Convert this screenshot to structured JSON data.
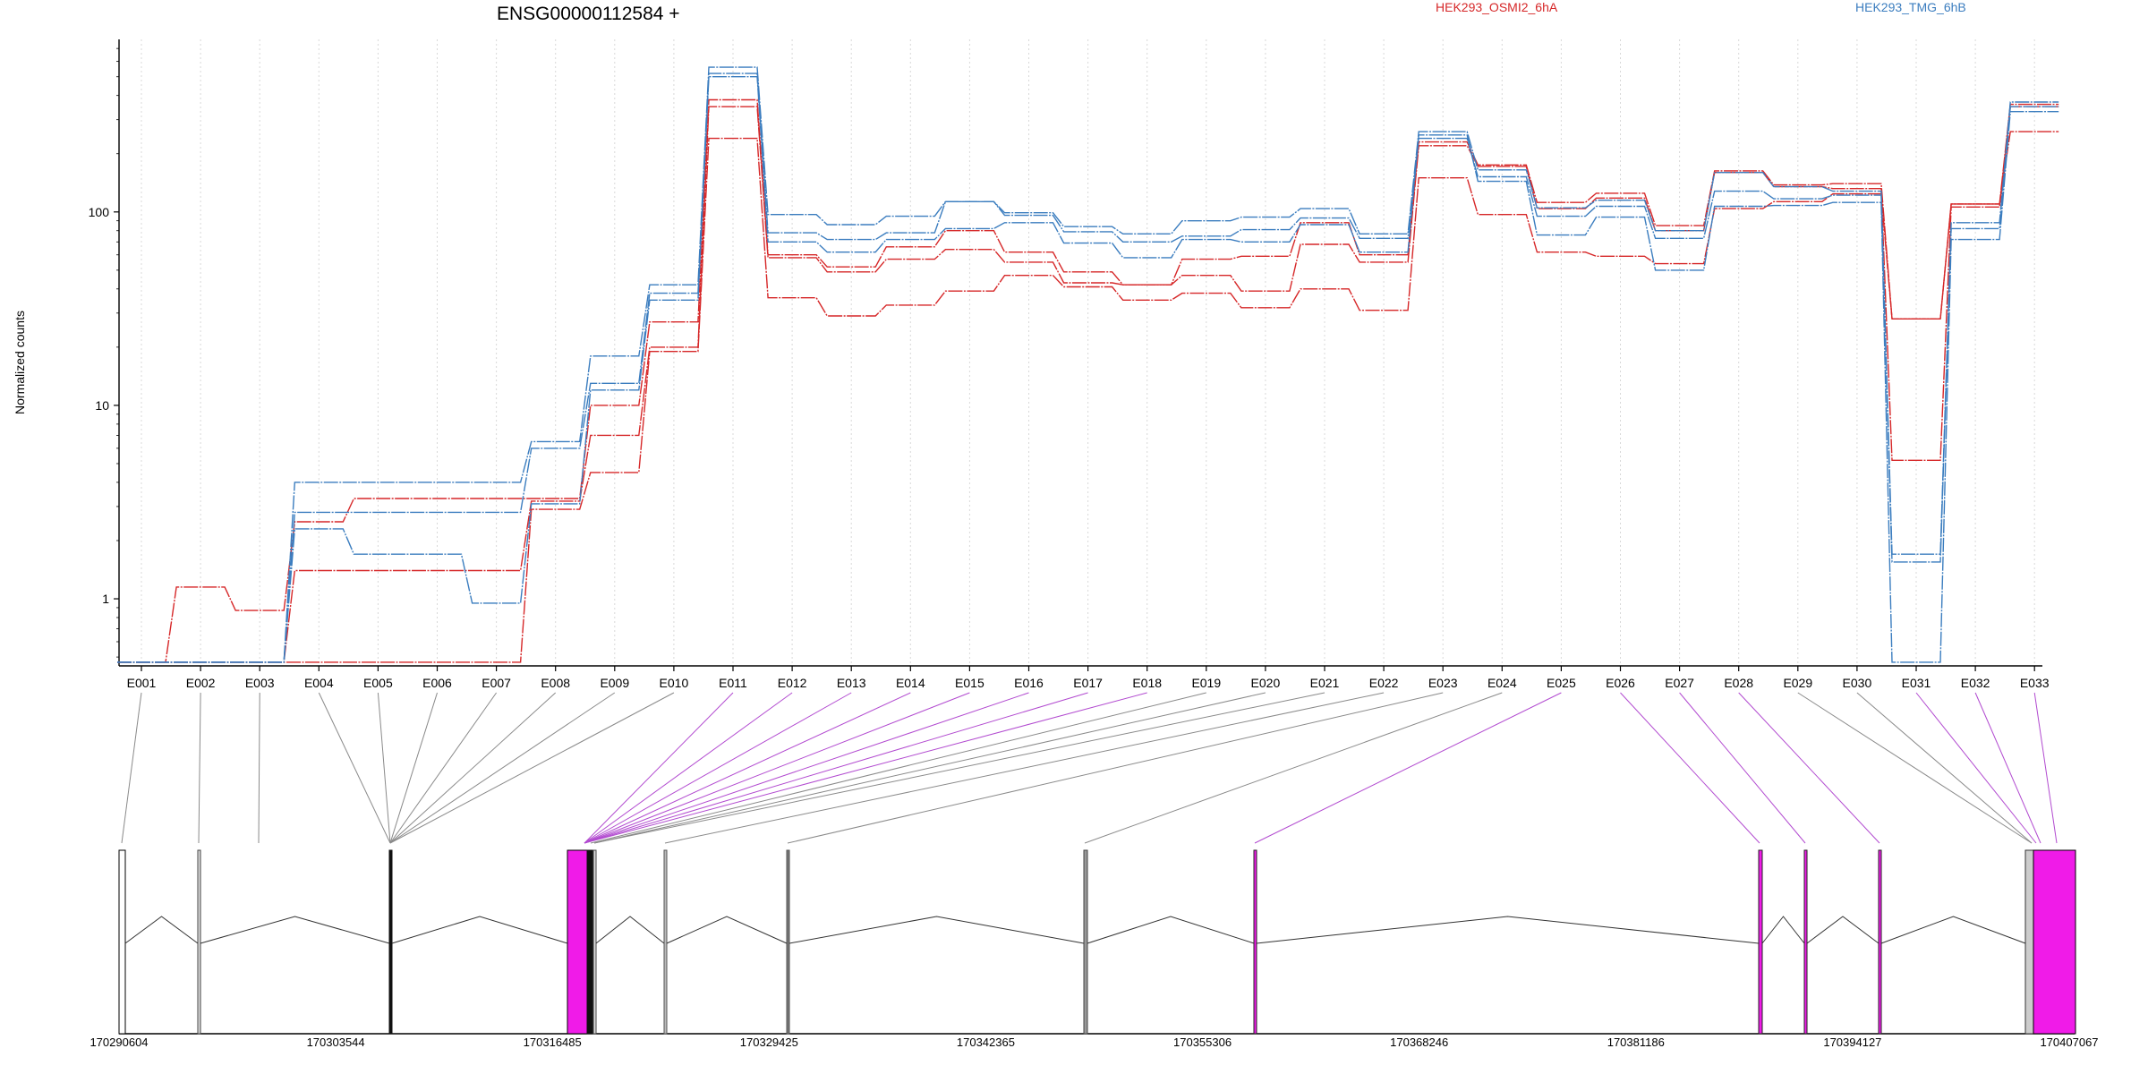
{
  "chart_data": {
    "type": "line",
    "title": "ENSG00000112584 +",
    "ylabel": "Normalized counts",
    "yscale": "log",
    "ylim": [
      0.45,
      780
    ],
    "yticks": [
      1,
      10,
      100
    ],
    "ytick_labels": [
      "1",
      "10",
      "100"
    ],
    "grid": "vertical dotted",
    "legend": [
      {
        "name": "HEK293_OSMI2_6hA",
        "color": "#d62728"
      },
      {
        "name": "HEK293_TMG_6hB",
        "color": "#3b7dbf"
      }
    ],
    "legend_placement": "top-right",
    "categories": [
      "E001",
      "E002",
      "E003",
      "E004",
      "E005",
      "E006",
      "E007",
      "E008",
      "E009",
      "E010",
      "E011",
      "E012",
      "E013",
      "E014",
      "E015",
      "E016",
      "E017",
      "E018",
      "E019",
      "E020",
      "E021",
      "E022",
      "E023",
      "E024",
      "E025",
      "E026",
      "E027",
      "E028",
      "E029",
      "E030",
      "E031",
      "E032",
      "E033"
    ],
    "series": [
      {
        "group": "HEK293_OSMI2_6hA",
        "color": "#d62728",
        "values": [
          0.47,
          1.15,
          0.87,
          2.5,
          3.3,
          3.3,
          3.3,
          3.3,
          10,
          27,
          380,
          60,
          52,
          66,
          80,
          62,
          49,
          42,
          57,
          59,
          88,
          60,
          230,
          175,
          112,
          125,
          85,
          163,
          138,
          140,
          28,
          110,
          360
        ]
      },
      {
        "group": "HEK293_OSMI2_6hA",
        "color": "#d62728",
        "values": [
          0.47,
          0.47,
          0.47,
          1.4,
          1.4,
          1.4,
          1.4,
          3.2,
          7,
          20,
          350,
          58,
          49,
          57,
          64,
          55,
          43,
          42,
          47,
          39,
          68,
          55,
          220,
          172,
          104,
          118,
          80,
          160,
          135,
          132,
          5.2,
          106,
          350
        ]
      },
      {
        "group": "HEK293_OSMI2_6hA",
        "color": "#d62728",
        "values": [
          0.47,
          0.47,
          0.47,
          0.47,
          0.47,
          0.47,
          0.47,
          2.9,
          4.5,
          19,
          240,
          36,
          29,
          33,
          39,
          47,
          41,
          35,
          38,
          32,
          40,
          31,
          150,
          97,
          62,
          59,
          54,
          104,
          113,
          124,
          28,
          110,
          260
        ]
      },
      {
        "group": "HEK293_TMG_6hB",
        "color": "#3b7dbf",
        "values": [
          0.47,
          0.47,
          0.47,
          4,
          4,
          4,
          4,
          6.5,
          18,
          42,
          560,
          97,
          86,
          95,
          113,
          99,
          84,
          77,
          90,
          94,
          104,
          77,
          260,
          165,
          105,
          115,
          80,
          160,
          135,
          128,
          1.7,
          88,
          370
        ]
      },
      {
        "group": "HEK293_TMG_6hB",
        "color": "#3b7dbf",
        "values": [
          0.47,
          0.47,
          0.47,
          2.8,
          2.8,
          2.8,
          2.8,
          6,
          13,
          38,
          520,
          78,
          72,
          78,
          113,
          96,
          79,
          70,
          75,
          81,
          93,
          73,
          240,
          152,
          95,
          107,
          73,
          128,
          117,
          122,
          1.55,
          82,
          350
        ]
      },
      {
        "group": "HEK293_TMG_6hB",
        "color": "#3b7dbf",
        "values": [
          0.47,
          0.47,
          0.47,
          2.3,
          1.7,
          1.7,
          0.95,
          3.1,
          12,
          35,
          500,
          70,
          62,
          72,
          82,
          88,
          69,
          58,
          72,
          70,
          86,
          62,
          250,
          144,
          76,
          94,
          50,
          107,
          108,
          112,
          0.47,
          72,
          330
        ]
      }
    ],
    "genome_coordinates": [
      "170290604",
      "170303544",
      "170316485",
      "170329425",
      "170342365",
      "170355306",
      "170368246",
      "170381186",
      "170394127",
      "170407067"
    ],
    "highlight_color": "#f01be8"
  }
}
